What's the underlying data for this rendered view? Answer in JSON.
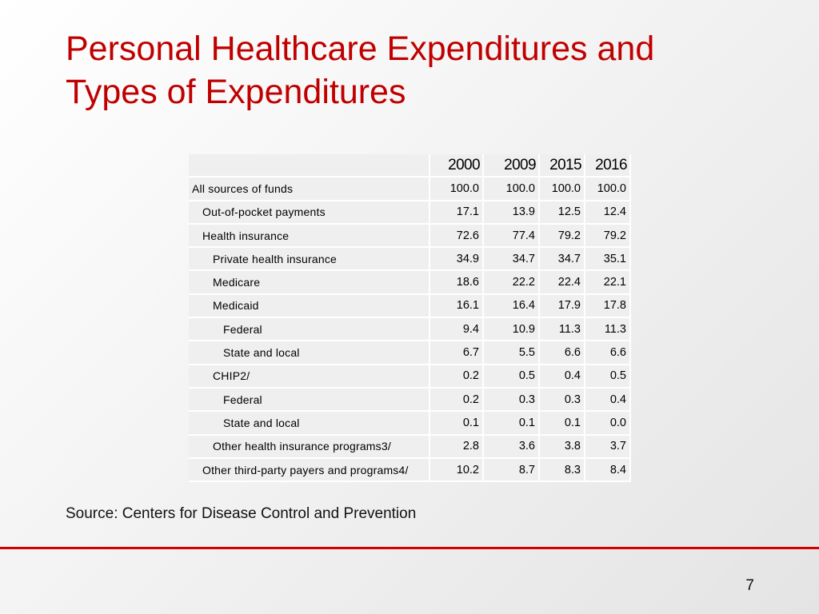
{
  "slide": {
    "title": "Personal Healthcare Expenditures and Types of Expenditures",
    "source": "Source: Centers for Disease Control and Prevention",
    "page_number": "7",
    "accent_color": "#c00000"
  },
  "table": {
    "columns": [
      "",
      "2000",
      "2009",
      "2015",
      "2016"
    ],
    "rows": [
      {
        "label": "All sources of funds",
        "indent": 0,
        "values": [
          "100.0",
          "100.0",
          "100.0",
          "100.0"
        ]
      },
      {
        "label": "Out-of-pocket payments",
        "indent": 1,
        "values": [
          "17.1",
          "13.9",
          "12.5",
          "12.4"
        ]
      },
      {
        "label": "Health insurance",
        "indent": 1,
        "values": [
          "72.6",
          "77.4",
          "79.2",
          "79.2"
        ]
      },
      {
        "label": "Private health insurance",
        "indent": 2,
        "values": [
          "34.9",
          "34.7",
          "34.7",
          "35.1"
        ]
      },
      {
        "label": "Medicare",
        "indent": 2,
        "values": [
          "18.6",
          "22.2",
          "22.4",
          "22.1"
        ]
      },
      {
        "label": "Medicaid",
        "indent": 2,
        "values": [
          "16.1",
          "16.4",
          "17.9",
          "17.8"
        ]
      },
      {
        "label": "Federal",
        "indent": 3,
        "values": [
          "9.4",
          "10.9",
          "11.3",
          "11.3"
        ]
      },
      {
        "label": "State and local",
        "indent": 3,
        "values": [
          "6.7",
          "5.5",
          "6.6",
          "6.6"
        ]
      },
      {
        "label": "CHIP2/",
        "indent": 2,
        "values": [
          "0.2",
          "0.5",
          "0.4",
          "0.5"
        ]
      },
      {
        "label": "Federal",
        "indent": 3,
        "values": [
          "0.2",
          "0.3",
          "0.3",
          "0.4"
        ]
      },
      {
        "label": "State and local",
        "indent": 3,
        "values": [
          "0.1",
          "0.1",
          "0.1",
          "0.0"
        ]
      },
      {
        "label": "Other health insurance programs3/",
        "indent": 2,
        "values": [
          "2.8",
          "3.6",
          "3.8",
          "3.7"
        ]
      },
      {
        "label": "Other third-party payers and programs4/",
        "indent": 1,
        "values": [
          "10.2",
          "8.7",
          "8.3",
          "8.4"
        ]
      }
    ]
  }
}
